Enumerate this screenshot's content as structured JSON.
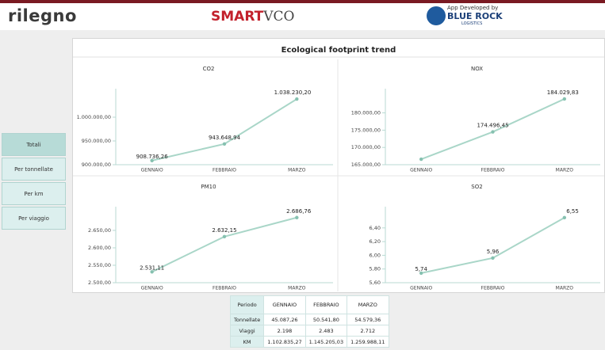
{
  "header": {
    "brand": "rilegno",
    "app_name_bold": "SMART",
    "app_name_light": "VCO",
    "developer_note": "App Developed by",
    "developer": "BLUE ROCK",
    "developer_sub": "LOGISTICS"
  },
  "sidebar": [
    "Totali",
    "Per tonnellate",
    "Per km",
    "Per viaggio"
  ],
  "panel_title": "Ecological footprint trend",
  "chart_data": [
    {
      "type": "line",
      "title": "CO2",
      "categories": [
        "GENNAIO",
        "FEBBRAIO",
        "MARZO"
      ],
      "values": [
        908736.26,
        943648.94,
        1038230.2
      ],
      "value_labels": [
        "908.736,26",
        "943.648,94",
        "1.038.230,20"
      ],
      "color": "#a9d6c8",
      "ylim": [
        900000,
        1060000
      ],
      "yticks": [
        {
          "value": 900000,
          "label": "900.000,00"
        },
        {
          "value": 950000,
          "label": "950.000,00"
        },
        {
          "value": 1000000,
          "label": "1.000.000,00"
        }
      ]
    },
    {
      "type": "line",
      "title": "NOX",
      "categories": [
        "GENNAIO",
        "FEBBRAIO",
        "MARZO"
      ],
      "values": [
        166600,
        174496.45,
        184029.83
      ],
      "value_labels": [
        null,
        "174.496,45",
        "184.029,83"
      ],
      "color": "#a9d6c8",
      "ylim": [
        165000,
        187000
      ],
      "yticks": [
        {
          "value": 165000,
          "label": "165.000,00"
        },
        {
          "value": 170000,
          "label": "170.000,00"
        },
        {
          "value": 175000,
          "label": "175.000,00"
        },
        {
          "value": 180000,
          "label": "180.000,00"
        }
      ]
    },
    {
      "type": "line",
      "title": "PM10",
      "categories": [
        "GENNAIO",
        "FEBBRAIO",
        "MARZO"
      ],
      "values": [
        2531.11,
        2632.15,
        2686.76
      ],
      "value_labels": [
        "2.531,11",
        "2.632,15",
        "2.686,76"
      ],
      "color": "#a9d6c8",
      "ylim": [
        2500,
        2718
      ],
      "yticks": [
        {
          "value": 2500,
          "label": "2.500,00"
        },
        {
          "value": 2550,
          "label": "2.550,00"
        },
        {
          "value": 2600,
          "label": "2.600,00"
        },
        {
          "value": 2650,
          "label": "2.650,00"
        }
      ]
    },
    {
      "type": "line",
      "title": "SO2",
      "categories": [
        "GENNAIO",
        "FEBBRAIO",
        "MARZO"
      ],
      "values": [
        5.74,
        5.96,
        6.55
      ],
      "value_labels": [
        "5,74",
        "5,96",
        "6,55"
      ],
      "color": "#a9d6c8",
      "ylim": [
        5.6,
        6.71
      ],
      "yticks": [
        {
          "value": 5.6,
          "label": "5,60"
        },
        {
          "value": 5.8,
          "label": "5,80"
        },
        {
          "value": 6.0,
          "label": "6,00"
        },
        {
          "value": 6.2,
          "label": "6,20"
        },
        {
          "value": 6.4,
          "label": "6,40"
        }
      ]
    }
  ],
  "table": {
    "header": [
      "Periodo",
      "GENNAIO",
      "FEBBRAIO",
      "MARZO"
    ],
    "rows": [
      [
        "Tonnellate",
        "45.087,26",
        "50.541,80",
        "54.579,36"
      ],
      [
        "Viaggi",
        "2.198",
        "2.483",
        "2.712"
      ],
      [
        "KM",
        "1.102.835,27",
        "1.145.205,03",
        "1.259.988,11"
      ]
    ]
  }
}
